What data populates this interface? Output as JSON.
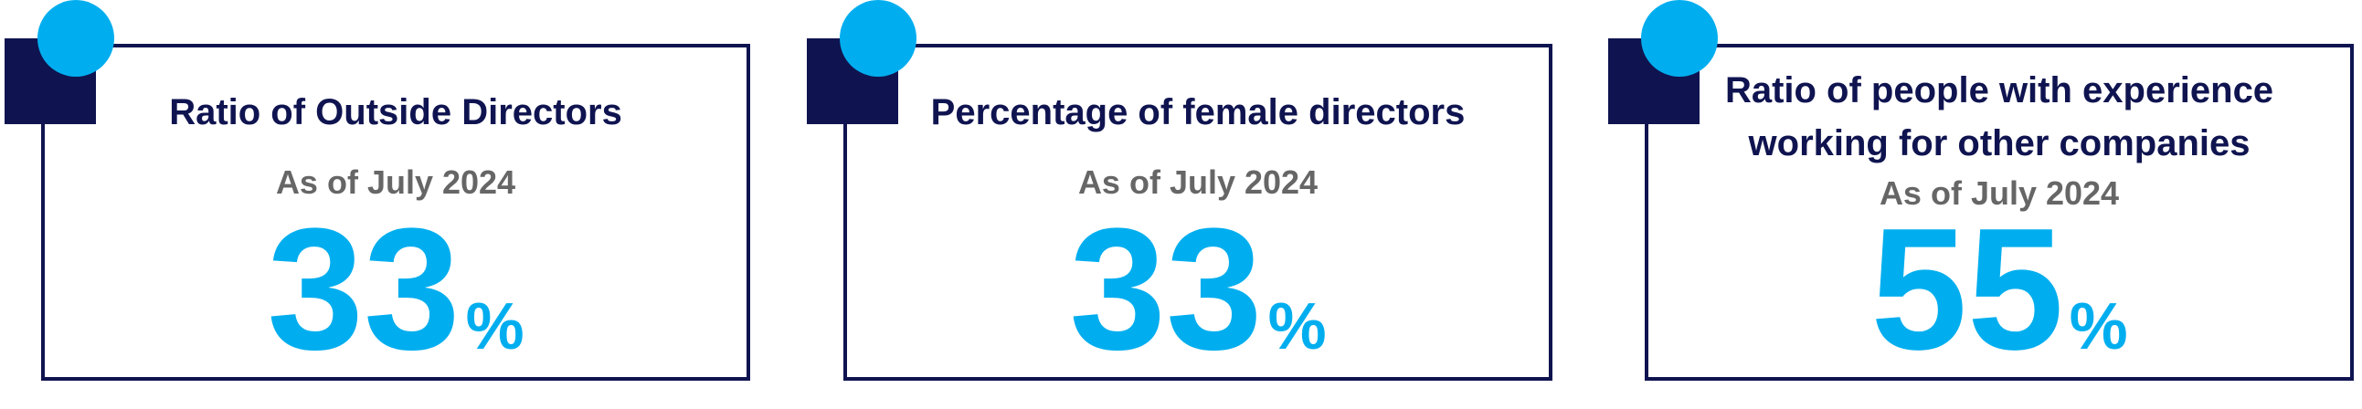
{
  "cards": [
    {
      "title_lines": [
        "Ratio of Outside Directors"
      ],
      "subtitle": "As of July 2024",
      "value": 33,
      "unit": "%"
    },
    {
      "title_lines": [
        "Percentage of female directors"
      ],
      "subtitle": "As of July 2024",
      "value": 33,
      "unit": "%"
    },
    {
      "title_lines": [
        "Ratio of people with experience",
        "working for other companies"
      ],
      "subtitle": "As of July 2024",
      "value": 55,
      "unit": "%"
    }
  ]
}
